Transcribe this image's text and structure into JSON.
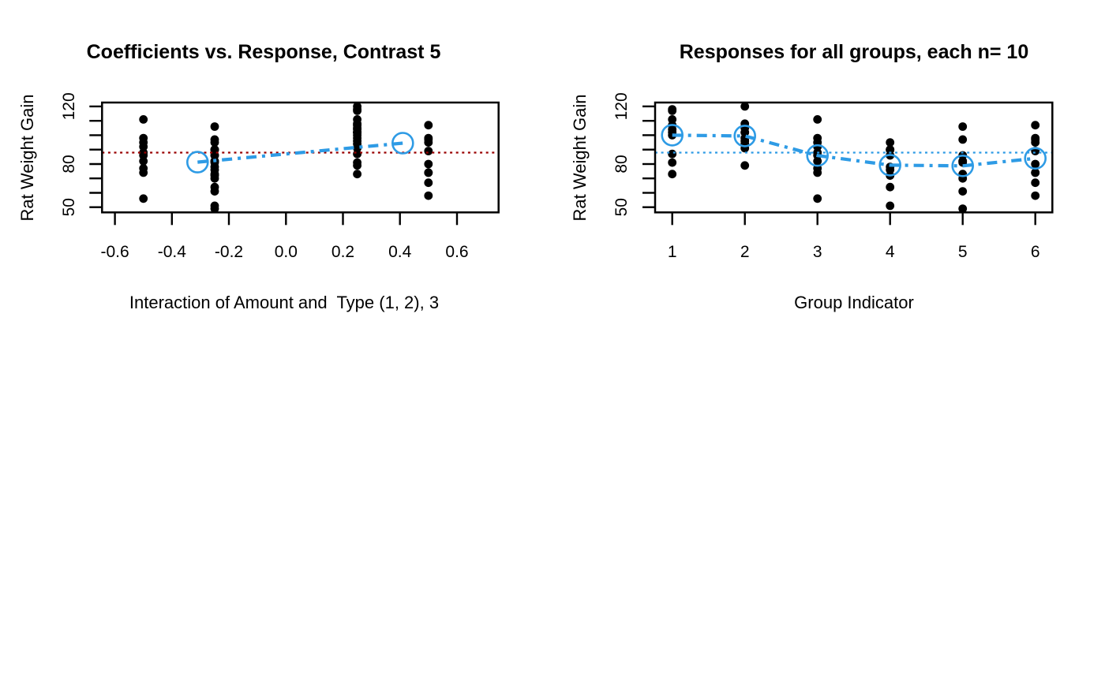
{
  "page": {
    "background": "#ffffff"
  },
  "colors": {
    "accent_blue": "#2E9BE5",
    "dark_red": "#990000",
    "points_black": "#000000"
  },
  "chart_data": [
    {
      "type": "scatter",
      "title": "Coefficients vs. Response, Contrast 5",
      "xlabel": "Interaction of Amount and  Type (1, 2), 3",
      "ylabel": "Rat Weight Gain",
      "xlim": [
        -0.645,
        0.746
      ],
      "ylim": [
        46.4,
        122.7
      ],
      "x_ticks": [
        -0.6,
        -0.4,
        -0.2,
        0.0,
        0.2,
        0.4,
        0.6
      ],
      "x_tick_labels": [
        "-0.6",
        "-0.4",
        "-0.2",
        "0.0",
        "0.2",
        "0.4",
        "0.6"
      ],
      "y_ticks": [
        50,
        60,
        70,
        80,
        90,
        100,
        110,
        120
      ],
      "y_tick_labels": [
        "50",
        "",
        "",
        "80",
        "",
        "",
        "",
        "120"
      ],
      "grid": false,
      "legend": null,
      "point_groups": [
        {
          "x": -0.5,
          "values": [
            98,
            74,
            56,
            111,
            95,
            88,
            82,
            77,
            86,
            92
          ]
        },
        {
          "x": -0.25,
          "values": [
            90,
            76,
            90,
            64,
            86,
            51,
            72,
            90,
            95,
            78,
            49,
            82,
            73,
            86,
            81,
            97,
            106,
            70,
            61,
            82
          ]
        },
        {
          "x": 0.25,
          "values": [
            73,
            102,
            118,
            104,
            81,
            107,
            100,
            87,
            117,
            111,
            94,
            79,
            96,
            98,
            102,
            102,
            108,
            91,
            120,
            105
          ]
        },
        {
          "x": 0.5,
          "values": [
            107,
            95,
            97,
            80,
            98,
            74,
            74,
            67,
            89,
            58
          ]
        }
      ],
      "mean_points": [
        {
          "x": -0.31,
          "y": 81.3
        },
        {
          "x": 0.41,
          "y": 94.5
        }
      ],
      "trend_style": "dash-dot",
      "hline": {
        "y": 87.9,
        "color": "#990000",
        "style": "dotted"
      }
    },
    {
      "type": "scatter",
      "title": "Responses for all groups, each n= 10",
      "xlabel": "Group Indicator",
      "ylabel": "Rat Weight Gain",
      "xlim": [
        0.764,
        6.235
      ],
      "ylim": [
        46.4,
        122.7
      ],
      "x_ticks": [
        1,
        2,
        3,
        4,
        5,
        6
      ],
      "x_tick_labels": [
        "1",
        "2",
        "3",
        "4",
        "5",
        "6"
      ],
      "y_ticks": [
        50,
        60,
        70,
        80,
        90,
        100,
        110,
        120
      ],
      "y_tick_labels": [
        "50",
        "",
        "",
        "80",
        "",
        "",
        "",
        "120"
      ],
      "grid": false,
      "legend": null,
      "point_groups": [
        {
          "x": 1,
          "values": [
            73,
            102,
            118,
            104,
            81,
            107,
            100,
            87,
            117,
            111
          ]
        },
        {
          "x": 2,
          "values": [
            94,
            79,
            96,
            98,
            102,
            102,
            108,
            91,
            120,
            105
          ]
        },
        {
          "x": 3,
          "values": [
            98,
            74,
            56,
            111,
            95,
            88,
            82,
            77,
            86,
            92
          ]
        },
        {
          "x": 4,
          "values": [
            90,
            76,
            90,
            64,
            86,
            51,
            72,
            90,
            95,
            78
          ]
        },
        {
          "x": 5,
          "values": [
            49,
            82,
            73,
            86,
            81,
            97,
            106,
            70,
            61,
            82
          ]
        },
        {
          "x": 6,
          "values": [
            107,
            95,
            97,
            80,
            98,
            74,
            74,
            67,
            89,
            58
          ]
        }
      ],
      "mean_points": [
        {
          "x": 1,
          "y": 100.0
        },
        {
          "x": 2,
          "y": 99.5
        },
        {
          "x": 3,
          "y": 85.9
        },
        {
          "x": 4,
          "y": 79.2
        },
        {
          "x": 5,
          "y": 78.7
        },
        {
          "x": 6,
          "y": 83.9
        }
      ],
      "trend_style": "dash-dot",
      "hline": {
        "y": 87.9,
        "color": "#2E9BE5",
        "style": "dotted"
      }
    }
  ]
}
